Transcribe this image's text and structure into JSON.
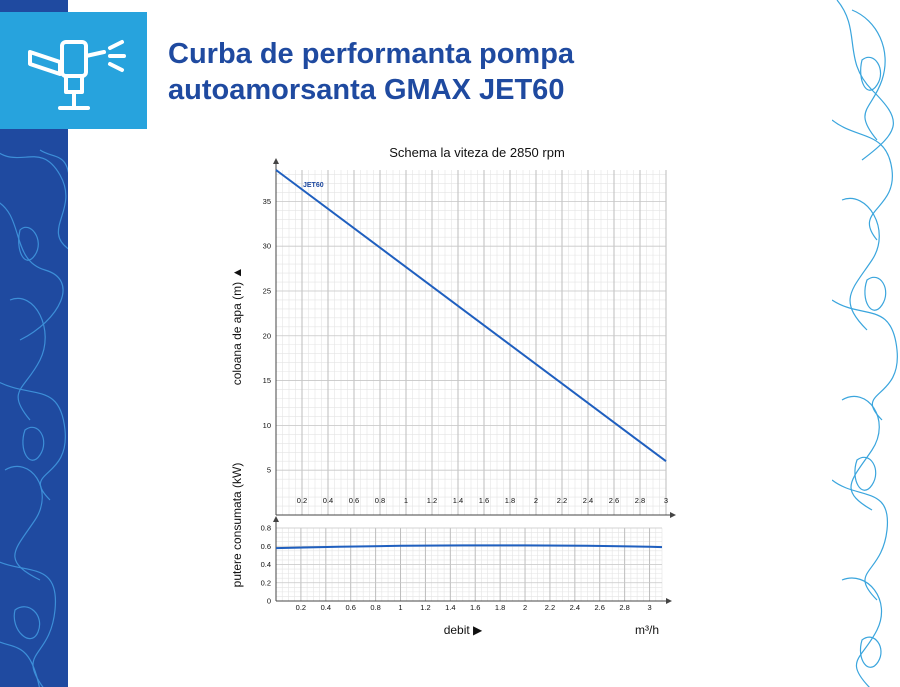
{
  "page": {
    "title": "Curba de performanta pompa autoamorsanta GMAX JET60",
    "brand_color": "#1f4aa0",
    "accent_color": "#27a3dd",
    "icon": "sprinkler-icon"
  },
  "chart_data": [
    {
      "type": "line",
      "title": "Schema la viteza de 2850 rpm",
      "ylabel": "coloana de apa (m) ▲",
      "xlabel": "",
      "xlim": [
        0,
        3
      ],
      "ylim": [
        0,
        38.5
      ],
      "x_ticks": [
        "0.2",
        "0.4",
        "0.6",
        "0.8",
        "1",
        "1.2",
        "1.4",
        "1.6",
        "1.8",
        "2",
        "2.2",
        "2.4",
        "2.6",
        "2.8",
        "3"
      ],
      "y_ticks": [
        "5",
        "10",
        "15",
        "20",
        "25",
        "30",
        "35"
      ],
      "grid": true,
      "series": [
        {
          "name": "JET60",
          "color": "#1f5fbf",
          "x": [
            0,
            3
          ],
          "y": [
            38.5,
            6
          ]
        }
      ]
    },
    {
      "type": "line",
      "title": "",
      "ylabel": "putere consumata (kW)",
      "xlabel": "debit ▶",
      "xunit": "m³/h",
      "xlim": [
        0,
        3.1
      ],
      "ylim": [
        0,
        0.8
      ],
      "x_ticks": [
        "0.2",
        "0.4",
        "0.6",
        "0.8",
        "1",
        "1.2",
        "1.4",
        "1.6",
        "1.8",
        "2",
        "2.2",
        "2.4",
        "2.6",
        "2.8",
        "3"
      ],
      "y_ticks": [
        "0",
        "0.2",
        "0.4",
        "0.6",
        "0.8"
      ],
      "grid": true,
      "series": [
        {
          "color": "#1f5fbf",
          "x": [
            0,
            0.5,
            1.0,
            1.5,
            2.0,
            2.5,
            3.0,
            3.1
          ],
          "y": [
            0.58,
            0.595,
            0.605,
            0.61,
            0.61,
            0.605,
            0.595,
            0.59
          ]
        }
      ]
    }
  ]
}
